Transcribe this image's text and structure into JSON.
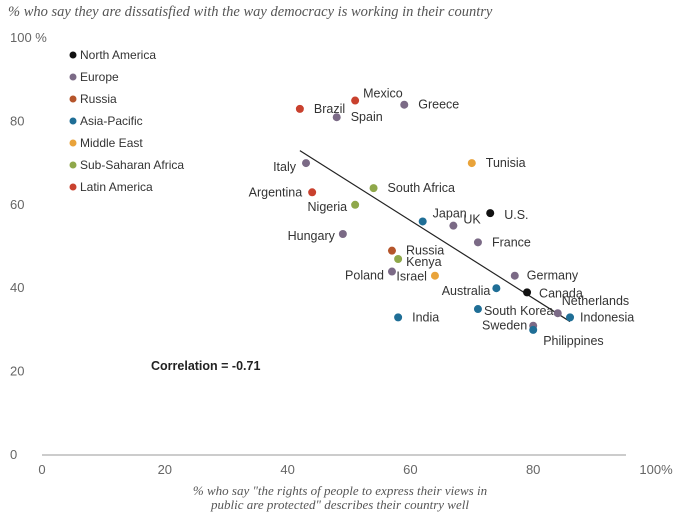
{
  "title": "% who say they are dissatisfied with the way democracy is working in their country",
  "xlabel_line1": "% who say \"the rights of people to express their views in",
  "xlabel_line2": "public are protected\" describes their country well",
  "annotation": "Correlation = -0.71",
  "chart_data": {
    "type": "scatter",
    "title": "% who say they are dissatisfied with the way democracy is working in their country",
    "xlabel": "% who say \"the rights of people to express their views in public are protected\" describes their country well",
    "ylabel": "",
    "xlim": [
      0,
      100
    ],
    "ylim": [
      0,
      100
    ],
    "x_ticks": [
      {
        "v": 0,
        "label": "0"
      },
      {
        "v": 20,
        "label": "20"
      },
      {
        "v": 40,
        "label": "40"
      },
      {
        "v": 60,
        "label": "60"
      },
      {
        "v": 80,
        "label": "80"
      },
      {
        "v": 100,
        "label": "100%"
      }
    ],
    "y_ticks": [
      {
        "v": 0,
        "label": "0"
      },
      {
        "v": 20,
        "label": "20"
      },
      {
        "v": 40,
        "label": "40"
      },
      {
        "v": 60,
        "label": "60"
      },
      {
        "v": 80,
        "label": "80"
      },
      {
        "v": 100,
        "label": "100 %"
      }
    ],
    "grid": false,
    "legend_position": "top-left",
    "regions": [
      {
        "name": "North America",
        "color": "#111111"
      },
      {
        "name": "Europe",
        "color": "#7b6a86"
      },
      {
        "name": "Russia",
        "color": "#b5552b"
      },
      {
        "name": "Asia-Pacific",
        "color": "#1f6e96"
      },
      {
        "name": "Middle East",
        "color": "#e9a33a"
      },
      {
        "name": "Sub-Saharan Africa",
        "color": "#8fa84a"
      },
      {
        "name": "Latin America",
        "color": "#c9412e"
      }
    ],
    "points": [
      {
        "label": "Brazil",
        "region": "Latin America",
        "x": 42,
        "y": 83
      },
      {
        "label": "Mexico",
        "region": "Latin America",
        "x": 51,
        "y": 85
      },
      {
        "label": "Spain",
        "region": "Europe",
        "x": 48,
        "y": 81
      },
      {
        "label": "Greece",
        "region": "Europe",
        "x": 59,
        "y": 84
      },
      {
        "label": "Italy",
        "region": "Europe",
        "x": 43,
        "y": 70
      },
      {
        "label": "Tunisia",
        "region": "Middle East",
        "x": 70,
        "y": 70
      },
      {
        "label": "Argentina",
        "region": "Latin America",
        "x": 44,
        "y": 63
      },
      {
        "label": "South Africa",
        "region": "Sub-Saharan Africa",
        "x": 54,
        "y": 64
      },
      {
        "label": "Nigeria",
        "region": "Sub-Saharan Africa",
        "x": 51,
        "y": 60
      },
      {
        "label": "Japan",
        "region": "Asia-Pacific",
        "x": 62,
        "y": 56
      },
      {
        "label": "U.S.",
        "region": "North America",
        "x": 73,
        "y": 58
      },
      {
        "label": "UK",
        "region": "Europe",
        "x": 67,
        "y": 55
      },
      {
        "label": "France",
        "region": "Europe",
        "x": 71,
        "y": 51
      },
      {
        "label": "Hungary",
        "region": "Europe",
        "x": 49,
        "y": 53
      },
      {
        "label": "Russia",
        "region": "Russia",
        "x": 57,
        "y": 49
      },
      {
        "label": "Kenya",
        "region": "Sub-Saharan Africa",
        "x": 58,
        "y": 47
      },
      {
        "label": "Poland",
        "region": "Europe",
        "x": 57,
        "y": 44
      },
      {
        "label": "Israel",
        "region": "Middle East",
        "x": 64,
        "y": 43
      },
      {
        "label": "Germany",
        "region": "Europe",
        "x": 77,
        "y": 43
      },
      {
        "label": "Australia",
        "region": "Asia-Pacific",
        "x": 74,
        "y": 40
      },
      {
        "label": "Canada",
        "region": "North America",
        "x": 79,
        "y": 39
      },
      {
        "label": "Netherlands",
        "region": "Europe",
        "x": 84,
        "y": 34
      },
      {
        "label": "South Korea",
        "region": "Asia-Pacific",
        "x": 71,
        "y": 35
      },
      {
        "label": "Indonesia",
        "region": "Asia-Pacific",
        "x": 86,
        "y": 33
      },
      {
        "label": "India",
        "region": "Asia-Pacific",
        "x": 58,
        "y": 33
      },
      {
        "label": "Sweden",
        "region": "Europe",
        "x": 80,
        "y": 31
      },
      {
        "label": "Philippines",
        "region": "Asia-Pacific",
        "x": 80,
        "y": 30
      }
    ],
    "trendline": {
      "x": [
        42,
        86
      ],
      "y": [
        73,
        32
      ]
    }
  }
}
